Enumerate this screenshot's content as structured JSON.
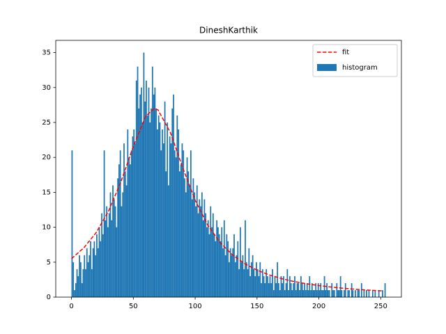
{
  "chart_data": {
    "type": "histogram",
    "title": "DineshKarthik",
    "name": "histogram",
    "color": "#1f77b4",
    "bins": [
      0,
      1,
      2,
      3,
      4,
      5,
      6,
      7,
      8,
      9,
      10,
      11,
      12,
      13,
      14,
      15,
      16,
      17,
      18,
      19,
      20,
      21,
      22,
      23,
      24,
      25,
      26,
      27,
      28,
      29,
      30,
      31,
      32,
      33,
      34,
      35,
      36,
      37,
      38,
      39,
      40,
      41,
      42,
      43,
      44,
      45,
      46,
      47,
      48,
      49,
      50,
      51,
      52,
      53,
      54,
      55,
      56,
      57,
      58,
      59,
      60,
      61,
      62,
      63,
      64,
      65,
      66,
      67,
      68,
      69,
      70,
      71,
      72,
      73,
      74,
      75,
      76,
      77,
      78,
      79,
      80,
      81,
      82,
      83,
      84,
      85,
      86,
      87,
      88,
      89,
      90,
      91,
      92,
      93,
      94,
      95,
      96,
      97,
      98,
      99,
      100,
      101,
      102,
      103,
      104,
      105,
      106,
      107,
      108,
      109,
      110,
      111,
      112,
      113,
      114,
      115,
      116,
      117,
      118,
      119,
      120,
      121,
      122,
      123,
      124,
      125,
      126,
      127,
      128,
      129,
      130,
      131,
      132,
      133,
      134,
      135,
      136,
      137,
      138,
      139,
      140,
      141,
      142,
      143,
      144,
      145,
      146,
      147,
      148,
      149,
      150,
      151,
      152,
      153,
      154,
      155,
      156,
      157,
      158,
      159,
      160,
      161,
      162,
      163,
      164,
      165,
      166,
      167,
      168,
      169,
      170,
      171,
      172,
      173,
      174,
      175,
      176,
      177,
      178,
      179,
      180,
      181,
      182,
      183,
      184,
      185,
      186,
      187,
      188,
      189,
      190,
      191,
      192,
      193,
      194,
      195,
      196,
      197,
      198,
      199,
      200,
      201,
      202,
      203,
      204,
      205,
      206,
      207,
      208,
      209,
      210,
      211,
      212,
      213,
      214,
      215,
      216,
      217,
      218,
      219,
      220,
      221,
      222,
      223,
      224,
      225,
      226,
      227,
      228,
      229,
      230,
      231,
      232,
      233,
      234,
      235,
      236,
      237,
      238,
      239,
      240,
      241,
      242,
      243,
      244,
      245,
      246,
      247,
      248,
      249,
      250,
      251,
      252,
      253,
      254
    ],
    "counts": [
      21,
      5,
      1,
      2,
      4,
      3,
      6,
      5,
      2,
      4,
      6,
      4,
      7,
      5,
      6,
      8,
      4,
      7,
      8,
      6,
      9,
      7,
      10,
      8,
      12,
      9,
      21,
      11,
      13,
      10,
      12,
      15,
      11,
      16,
      14,
      13,
      10,
      17,
      19,
      21,
      13,
      15,
      22,
      18,
      16,
      24,
      20,
      19,
      21,
      23,
      24,
      22,
      31,
      33,
      27,
      29,
      30,
      25,
      35,
      28,
      31,
      26,
      30,
      25,
      27,
      33,
      29,
      30,
      27,
      24,
      26,
      25,
      21,
      24,
      22,
      28,
      18,
      25,
      16,
      23,
      22,
      27,
      29,
      21,
      20,
      26,
      24,
      18,
      19,
      22,
      21,
      17,
      15,
      20,
      18,
      16,
      21,
      14,
      17,
      15,
      13,
      16,
      12,
      14,
      13,
      15,
      11,
      14,
      12,
      10,
      11,
      9,
      13,
      10,
      12,
      9,
      8,
      11,
      10,
      9,
      8,
      10,
      7,
      11,
      6,
      9,
      8,
      5,
      7,
      6,
      7,
      9,
      5,
      6,
      8,
      4,
      10,
      5,
      6,
      4,
      11,
      5,
      4,
      7,
      3,
      5,
      6,
      4,
      3,
      5,
      4,
      3,
      5,
      2,
      4,
      3,
      2,
      4,
      3,
      2,
      3,
      2,
      4,
      1,
      3,
      2,
      5,
      2,
      1,
      3,
      2,
      3,
      1,
      2,
      4,
      1,
      3,
      2,
      1,
      2,
      3,
      1,
      2,
      2,
      1,
      3,
      2,
      1,
      2,
      1,
      2,
      1,
      3,
      1,
      2,
      1,
      1,
      2,
      1,
      2,
      1,
      2,
      1,
      1,
      3,
      1,
      2,
      1,
      1,
      0,
      2,
      1,
      1,
      0,
      2,
      1,
      1,
      3,
      1,
      0,
      1,
      2,
      0,
      1,
      1,
      0,
      2,
      1,
      0,
      1,
      0,
      1,
      1,
      0,
      2,
      0,
      1,
      0,
      1,
      0,
      1,
      0,
      0,
      1,
      0,
      1,
      0,
      0,
      1,
      0,
      0,
      1,
      0,
      2
    ],
    "fit": {
      "name": "fit",
      "color": "red",
      "linestyle": "dashed",
      "x": [
        0,
        10,
        20,
        30,
        40,
        50,
        60,
        67,
        70,
        80,
        90,
        100,
        110,
        120,
        130,
        140,
        150,
        160,
        170,
        180,
        190,
        200,
        210,
        220,
        230,
        240,
        252
      ],
      "y": [
        5.5,
        7.06,
        9.24,
        12.32,
        16.52,
        21.57,
        25.9,
        27,
        26.79,
        23.54,
        18.49,
        13.86,
        10.35,
        7.84,
        6.06,
        4.79,
        3.86,
        3.17,
        2.64,
        2.23,
        1.91,
        1.65,
        1.44,
        1.26,
        1.12,
        1.0,
        0.88
      ]
    },
    "xlim": [
      -12.7,
      266.7
    ],
    "ylim": [
      0,
      36.75
    ],
    "xticks": [
      0,
      50,
      100,
      150,
      200,
      250
    ],
    "yticks": [
      0,
      5,
      10,
      15,
      20,
      25,
      30,
      35
    ],
    "legend": "upper right"
  }
}
